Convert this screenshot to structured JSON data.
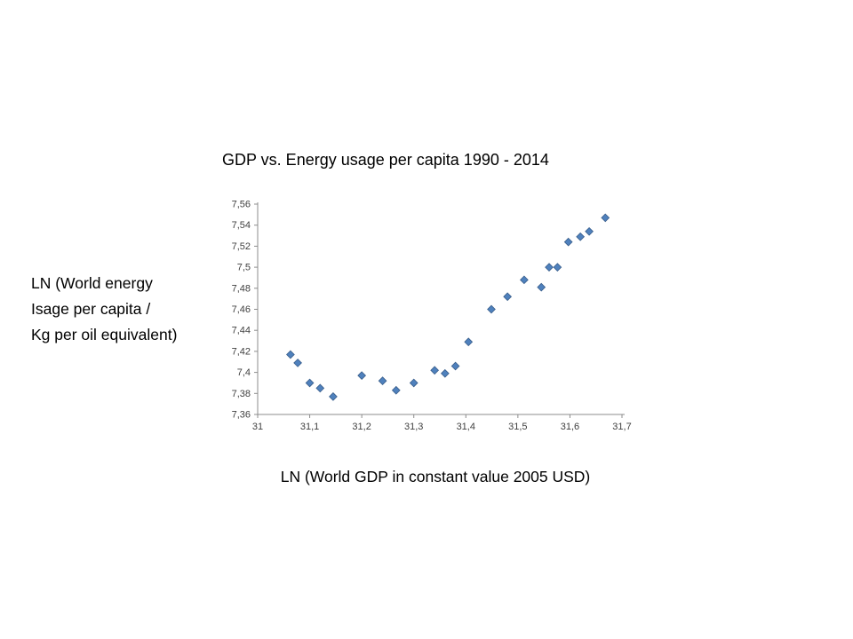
{
  "page": {
    "background": "#ffffff"
  },
  "chart_data": {
    "type": "scatter",
    "title": "GDP vs. Energy usage per capita 1990 - 2014",
    "xlabel": "LN (World GDP in constant value 2005 USD)",
    "ylabel_lines": [
      "LN (World energy",
      "Isage per capita /",
      "Kg per oil equivalent)"
    ],
    "xlim": [
      31,
      31.7
    ],
    "ylim": [
      7.36,
      7.56
    ],
    "x_ticks": [
      31,
      31.1,
      31.2,
      31.3,
      31.4,
      31.5,
      31.6,
      31.7
    ],
    "y_ticks": [
      7.36,
      7.38,
      7.4,
      7.42,
      7.44,
      7.46,
      7.48,
      7.5,
      7.52,
      7.54,
      7.56
    ],
    "decimal_separator": ",",
    "grid": false,
    "legend": "none",
    "axis_color": "#8c8c8c",
    "tick_label_color": "#404040",
    "marker": {
      "shape": "diamond",
      "color": "#4f81bd",
      "edge_color": "#385d8a"
    },
    "points": [
      [
        31.063,
        7.417
      ],
      [
        31.077,
        7.409
      ],
      [
        31.1,
        7.39
      ],
      [
        31.12,
        7.385
      ],
      [
        31.145,
        7.377
      ],
      [
        31.2,
        7.397
      ],
      [
        31.24,
        7.392
      ],
      [
        31.266,
        7.383
      ],
      [
        31.3,
        7.39
      ],
      [
        31.34,
        7.402
      ],
      [
        31.36,
        7.399
      ],
      [
        31.38,
        7.406
      ],
      [
        31.405,
        7.429
      ],
      [
        31.449,
        7.46
      ],
      [
        31.48,
        7.472
      ],
      [
        31.512,
        7.488
      ],
      [
        31.545,
        7.481
      ],
      [
        31.56,
        7.5
      ],
      [
        31.576,
        7.5
      ],
      [
        31.597,
        7.524
      ],
      [
        31.62,
        7.529
      ],
      [
        31.637,
        7.534
      ],
      [
        31.668,
        7.547
      ]
    ]
  }
}
